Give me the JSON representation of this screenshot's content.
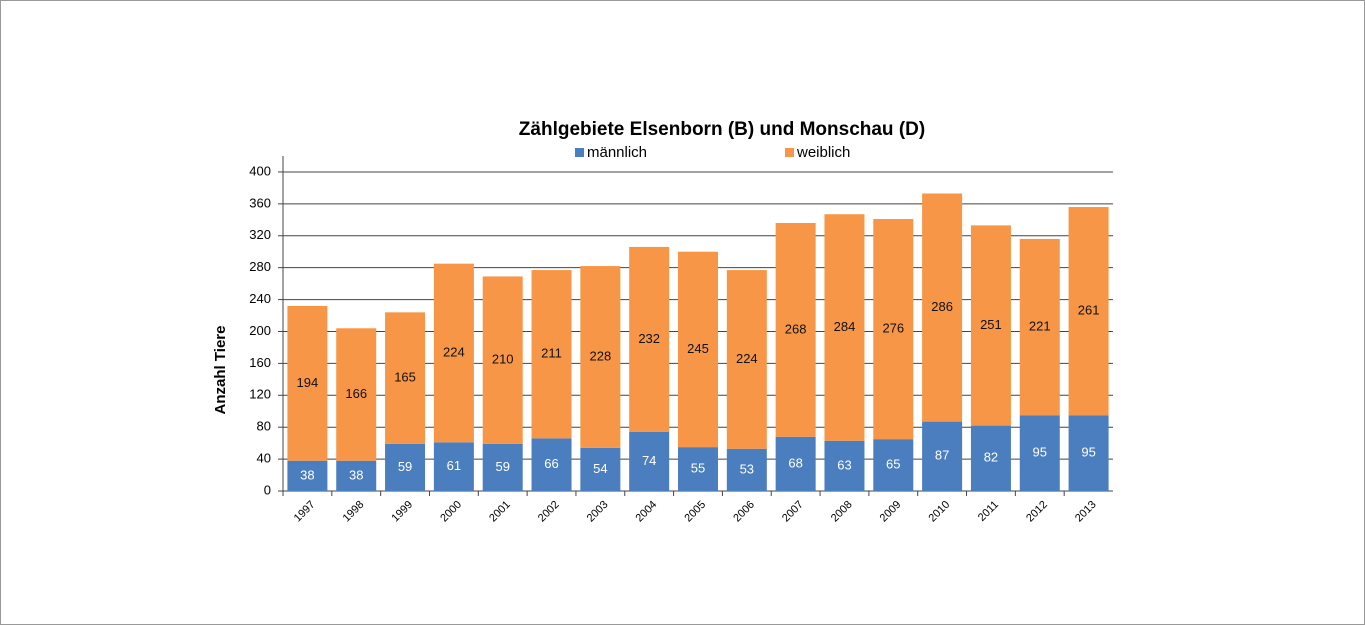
{
  "chart_data": {
    "type": "bar",
    "stacked": true,
    "title": "Zählgebiete Elsenborn (B) und Monschau (D)",
    "y_label": "Anzahl Tiere",
    "categories": [
      "1997",
      "1998",
      "1999",
      "2000",
      "2001",
      "2002",
      "2003",
      "2004",
      "2005",
      "2006",
      "2007",
      "2008",
      "2009",
      "2010",
      "2011",
      "2012",
      "2013"
    ],
    "series": [
      {
        "name": "männlich",
        "color": "#4a7ebf",
        "values": [
          38,
          38,
          59,
          61,
          59,
          66,
          54,
          74,
          55,
          53,
          68,
          63,
          65,
          87,
          82,
          95,
          95
        ]
      },
      {
        "name": "weiblich",
        "color": "#f79646",
        "values": [
          194,
          166,
          165,
          224,
          210,
          211,
          228,
          232,
          245,
          224,
          268,
          284,
          276,
          286,
          251,
          221,
          261
        ]
      }
    ],
    "ylim": [
      0,
      420
    ],
    "yticks": [
      0,
      40,
      80,
      120,
      160,
      200,
      240,
      280,
      320,
      360,
      400
    ],
    "grid": true
  }
}
